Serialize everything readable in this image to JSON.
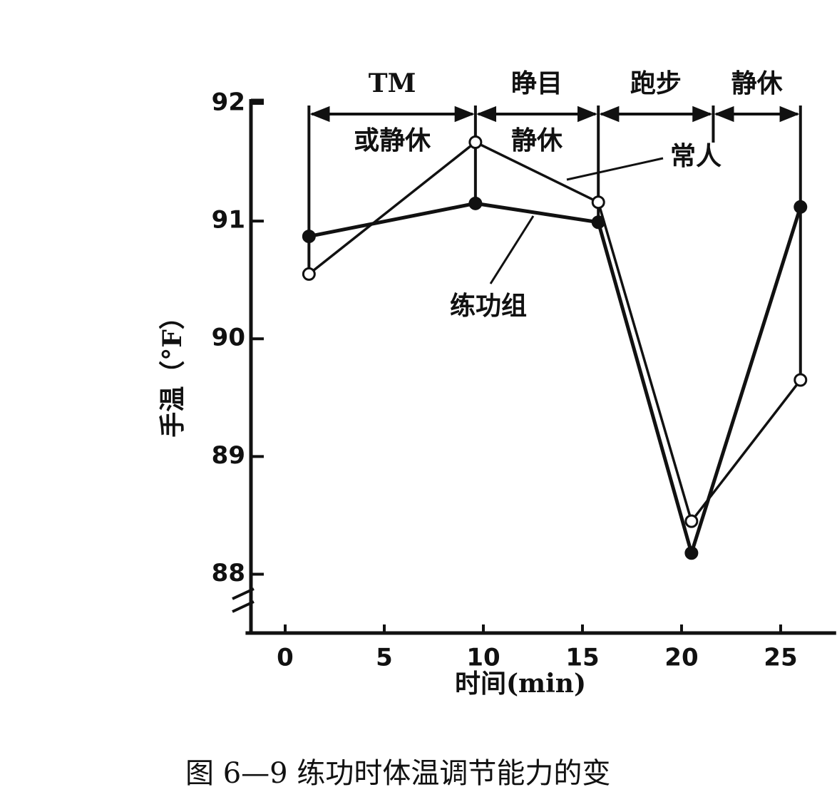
{
  "chart_data": {
    "type": "line",
    "caption": "图 6—9 练功时体温调节能力的变",
    "x_label": "时间(min)",
    "y_label": "手温（°F）",
    "x": [
      1.2,
      9.6,
      15.8,
      20.5,
      26
    ],
    "series": [
      {
        "name": "常人",
        "color": "#111111",
        "marker": "open",
        "values": [
          90.55,
          91.67,
          91.16,
          88.45,
          89.65
        ]
      },
      {
        "name": "练功组",
        "color": "#111111",
        "marker": "filled",
        "values": [
          90.87,
          91.15,
          90.99,
          88.18,
          91.12
        ]
      }
    ],
    "phases": [
      {
        "label": [
          "TM",
          "或静休"
        ],
        "start": 1.2,
        "end": 9.6
      },
      {
        "label": [
          "睁目",
          "静休"
        ],
        "start": 9.6,
        "end": 15.8
      },
      {
        "label": [
          "跑步"
        ],
        "start": 15.8,
        "end": 21.6
      },
      {
        "label": [
          "静休"
        ],
        "start": 21.6,
        "end": 26
      }
    ],
    "xlim": [
      -2,
      27.8
    ],
    "xticks": [
      0,
      5,
      10,
      15,
      20,
      25
    ],
    "ylim": [
      87.5,
      92
    ],
    "yticks": [
      88,
      89,
      90,
      91,
      92
    ]
  }
}
